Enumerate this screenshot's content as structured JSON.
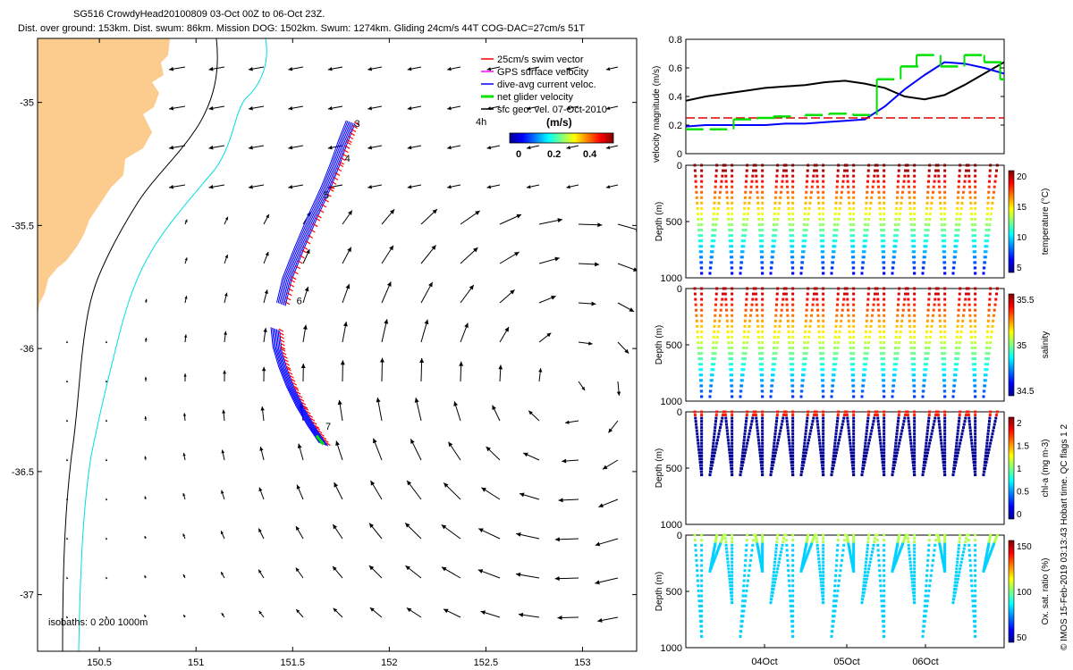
{
  "title": {
    "line1": "SG516 CrowdyHead20100809 03-Oct 00Z to 06-Oct 23Z.",
    "line2": "Dist. over ground: 153km. Dist. swum: 86km. Mission DOG: 1502km. Swum: 1274km. Gliding 24cm/s 44T COG-DAC=27cm/s 51T"
  },
  "colors": {
    "land": "#fccc8f",
    "isobath_200": "#000000",
    "isobath_1000": "#00dede",
    "swim": "#ff0000",
    "gps": "#ff00ff",
    "dac": "#0000ff",
    "net": "#00e000",
    "geo": "#000000",
    "threshold": "#e00000"
  },
  "legend": {
    "items": [
      {
        "label": "25cm/s swim vector",
        "color": "#ff0000"
      },
      {
        "label": "GPS surface velocity",
        "color": "#ff00ff"
      },
      {
        "label": "dive-avg current veloc.",
        "color": "#0000ff"
      },
      {
        "label": "net glider velocity",
        "color": "#00e000"
      },
      {
        "label": "sfc geo. vel. 07-Oct-2010",
        "color": "#000000"
      }
    ],
    "hours": "4h"
  },
  "colorbar": {
    "title": "(m/s)",
    "ticks": [
      "0",
      "0.2",
      "0.4"
    ]
  },
  "isobath_note": "isobaths: 0   200  1000m",
  "credit": "© IMOS 15-Feb-2019 03:13:43 Hobart time. QC flags 1  2",
  "chart_data": [
    {
      "type": "map",
      "name": "glider-track-map",
      "x_ticks": [
        "150.5",
        "151",
        "151.5",
        "152",
        "152.5",
        "153"
      ],
      "y_ticks": [
        "-35",
        "-35.5",
        "-36",
        "-36.5",
        "-37"
      ],
      "xlim": [
        150.18,
        153.28
      ],
      "ylim": [
        -37.23,
        -34.74
      ],
      "track_labels": [
        {
          "label": "3",
          "lon": 151.82,
          "lat": -35.1
        },
        {
          "label": "4",
          "lon": 151.77,
          "lat": -35.24
        },
        {
          "label": "5",
          "lon": 151.66,
          "lat": -35.39
        },
        {
          "label": "6",
          "lon": 151.52,
          "lat": -35.82
        },
        {
          "label": "7",
          "lon": 151.67,
          "lat": -36.33
        }
      ],
      "track": [
        [
          151.8,
          -35.08
        ],
        [
          151.76,
          -35.16
        ],
        [
          151.72,
          -35.25
        ],
        [
          151.67,
          -35.35
        ],
        [
          151.6,
          -35.47
        ],
        [
          151.53,
          -35.6
        ],
        [
          151.47,
          -35.72
        ],
        [
          151.44,
          -35.82
        ]
      ],
      "track2": [
        [
          151.41,
          -35.92
        ],
        [
          151.42,
          -36.0
        ],
        [
          151.45,
          -36.08
        ],
        [
          151.49,
          -36.16
        ],
        [
          151.54,
          -36.24
        ],
        [
          151.6,
          -36.32
        ],
        [
          151.66,
          -36.39
        ]
      ]
    },
    {
      "type": "line",
      "name": "velocity-magnitude",
      "ylabel": "velocity magnitude (m/s)",
      "ylim": [
        0,
        0.8
      ],
      "y_ticks": [
        "0",
        "0.2",
        "0.4",
        "0.6",
        "0.8"
      ],
      "x": [
        0,
        0.25,
        0.5,
        0.75,
        1.0,
        1.25,
        1.5,
        1.75,
        2.0,
        2.25,
        2.5,
        2.75,
        3.0,
        3.25,
        3.5,
        3.75,
        4.0
      ],
      "series": [
        {
          "name": "sfc geo black",
          "values": [
            0.37,
            0.4,
            0.42,
            0.44,
            0.46,
            0.47,
            0.48,
            0.5,
            0.51,
            0.49,
            0.46,
            0.4,
            0.38,
            0.41,
            0.48,
            0.56,
            0.64
          ]
        },
        {
          "name": "dive-avg blue",
          "values": [
            0.19,
            0.2,
            0.2,
            0.2,
            0.2,
            0.21,
            0.21,
            0.22,
            0.23,
            0.24,
            0.33,
            0.45,
            0.55,
            0.64,
            0.63,
            0.6,
            0.56
          ]
        },
        {
          "name": "threshold red",
          "values": [
            0.25,
            0.25,
            0.25,
            0.25,
            0.25,
            0.25,
            0.25,
            0.25,
            0.25,
            0.25,
            0.25,
            0.25,
            0.25,
            0.25,
            0.25,
            0.25,
            0.25
          ]
        }
      ],
      "net_segments": [
        [
          0.0,
          0.17
        ],
        [
          0.3,
          0.17
        ],
        [
          0.6,
          0.24
        ],
        [
          0.9,
          0.25
        ],
        [
          1.1,
          0.26
        ],
        [
          1.5,
          0.27
        ],
        [
          1.8,
          0.28
        ],
        [
          2.1,
          0.27
        ],
        [
          2.4,
          0.52
        ],
        [
          2.7,
          0.61
        ],
        [
          2.9,
          0.69
        ],
        [
          3.2,
          0.61
        ],
        [
          3.5,
          0.69
        ],
        [
          3.75,
          0.64
        ],
        [
          3.95,
          0.52
        ]
      ]
    },
    {
      "type": "scatter",
      "name": "temperature-section",
      "ylabel": "Depth (m)",
      "cbar_label": "temperature (°C)",
      "y_ticks": [
        "0",
        "500",
        "1000"
      ],
      "cbar_ticks": [
        "20",
        "15",
        "10",
        "5"
      ],
      "cycles": 20
    },
    {
      "type": "scatter",
      "name": "salinity-section",
      "ylabel": "Depth (m)",
      "cbar_label": "salinity",
      "y_ticks": [
        "0",
        "500",
        "1000"
      ],
      "cbar_ticks": [
        "35.5",
        "35",
        "34.5"
      ],
      "cycles": 20
    },
    {
      "type": "scatter",
      "name": "chla-section",
      "ylabel": "Depth (m)",
      "cbar_label": "chl-a (mg m-3)",
      "y_ticks": [
        "0",
        "500",
        "1000"
      ],
      "cbar_ticks": [
        "2",
        "1.5",
        "1",
        "0.5",
        "0"
      ],
      "cycles": 20
    },
    {
      "type": "scatter",
      "name": "oxygen-section",
      "ylabel": "Depth (m)",
      "cbar_label": "Ox. sat. ratio (%)",
      "y_ticks": [
        "0",
        "500",
        "1000"
      ],
      "cbar_ticks": [
        "150",
        "100",
        "50"
      ],
      "x_ticks": [
        "04Oct",
        "05Oct",
        "06Oct"
      ],
      "cycles": 20
    }
  ]
}
